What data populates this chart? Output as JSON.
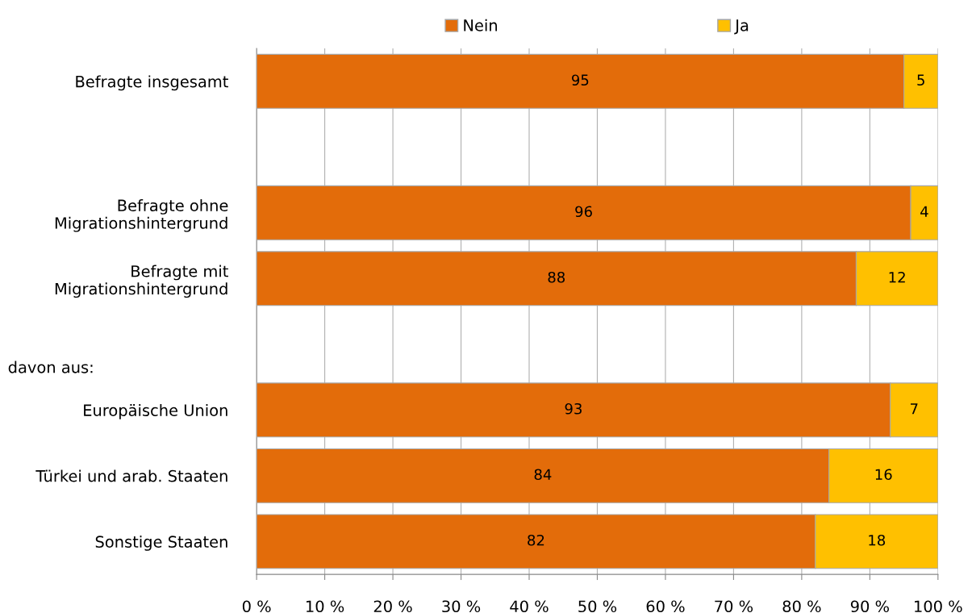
{
  "chart_data": {
    "type": "bar",
    "orientation": "horizontal",
    "stacked": true,
    "categories": [
      "Befragte insgesamt",
      null,
      "Befragte ohne\nMigrationshintergrund",
      "Befragte mit\nMigrationshintergrund",
      null,
      "Europäische Union",
      "Türkei und arab. Staaten",
      "Sonstige Staaten"
    ],
    "series": [
      {
        "name": "Nein",
        "color": "#e36c0a",
        "values": [
          95,
          null,
          96,
          88,
          null,
          93,
          84,
          82
        ]
      },
      {
        "name": "Ja",
        "color": "#ffc000",
        "values": [
          5,
          null,
          4,
          12,
          null,
          7,
          16,
          18
        ]
      }
    ],
    "xlim": [
      0,
      100
    ],
    "xticks": [
      {
        "value": 0,
        "label": "0 %"
      },
      {
        "value": 10,
        "label": "10 %"
      },
      {
        "value": 20,
        "label": "20 %"
      },
      {
        "value": 30,
        "label": "30 %"
      },
      {
        "value": 40,
        "label": "40 %"
      },
      {
        "value": 50,
        "label": "50 %"
      },
      {
        "value": 60,
        "label": "60 %"
      },
      {
        "value": 70,
        "label": "70 %"
      },
      {
        "value": 80,
        "label": "80 %"
      },
      {
        "value": 90,
        "label": "90 %"
      },
      {
        "value": 100,
        "label": "100 %"
      }
    ],
    "annotations": [
      "davon aus:"
    ],
    "data_labels": true,
    "grid": "x",
    "legend": "top"
  }
}
